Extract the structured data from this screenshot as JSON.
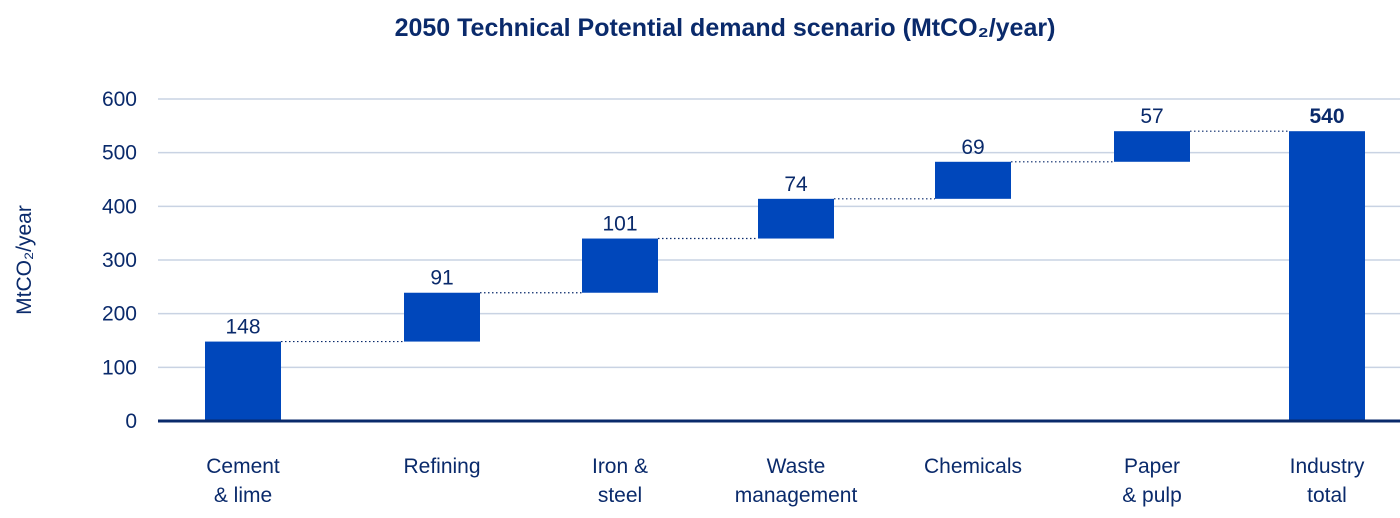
{
  "chart_data": {
    "type": "bar",
    "subtype": "waterfall",
    "title": "2050 Technical Potential demand scenario (MtCO₂/year)",
    "ylabel": "MtCO₂/year",
    "xlabel": "",
    "ylim": [
      0,
      600
    ],
    "yticks": [
      0,
      100,
      200,
      300,
      400,
      500,
      600
    ],
    "grid": true,
    "legend": "none",
    "bar_color": "#0047bb",
    "categories": [
      [
        "Cement",
        "& lime"
      ],
      [
        "Refining"
      ],
      [
        "Iron &",
        "steel"
      ],
      [
        "Waste",
        "management"
      ],
      [
        "Chemicals"
      ],
      [
        "Paper",
        "& pulp"
      ],
      [
        "Industry",
        "total"
      ]
    ],
    "values": [
      148,
      91,
      101,
      74,
      69,
      57,
      540
    ],
    "data_labels": [
      "148",
      "91",
      "101",
      "74",
      "69",
      "57",
      "540"
    ],
    "total_index": 6
  }
}
